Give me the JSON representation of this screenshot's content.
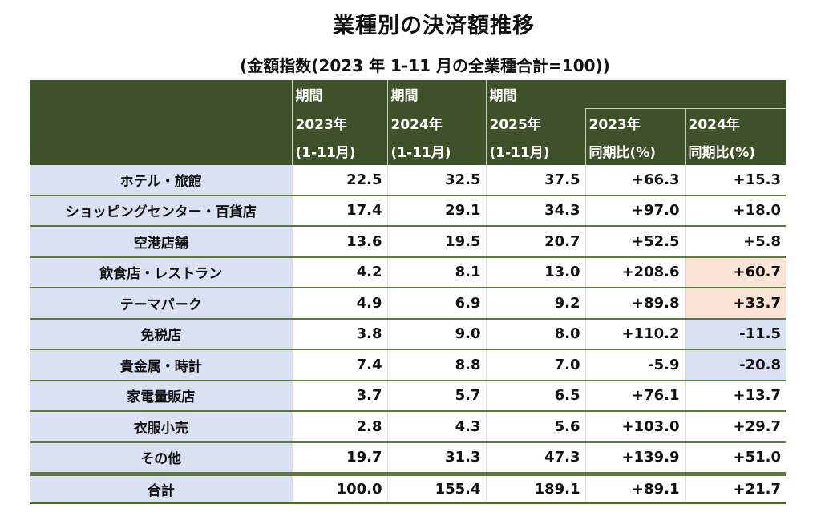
{
  "title": "業種別の決済額推移",
  "subtitle": "(金額指数(2023 年 1-11 月の全業種合計=100))",
  "header": {
    "period": "期間",
    "cols": [
      {
        "year": "2023年",
        "range": "(1-11月)"
      },
      {
        "year": "2024年",
        "range": "(1-11月)"
      },
      {
        "year": "2025年",
        "range": "(1-11月)"
      },
      {
        "year": "2023年",
        "range": "同期比(%)"
      },
      {
        "year": "2024年",
        "range": "同期比(%)"
      }
    ]
  },
  "rows": [
    {
      "label": "ホテル・旅館",
      "v": [
        "22.5",
        "32.5",
        "37.5",
        "+66.3",
        "+15.3"
      ],
      "hl": ""
    },
    {
      "label": "ショッピングセンター・百貨店",
      "v": [
        "17.4",
        "29.1",
        "34.3",
        "+97.0",
        "+18.0"
      ],
      "hl": ""
    },
    {
      "label": "空港店舗",
      "v": [
        "13.6",
        "19.5",
        "20.7",
        "+52.5",
        "+5.8"
      ],
      "hl": ""
    },
    {
      "label": "飲食店・レストラン",
      "v": [
        "4.2",
        "8.1",
        "13.0",
        "+208.6",
        "+60.7"
      ],
      "hl": "pos"
    },
    {
      "label": "テーマパーク",
      "v": [
        "4.9",
        "6.9",
        "9.2",
        "+89.8",
        "+33.7"
      ],
      "hl": "pos"
    },
    {
      "label": "免税店",
      "v": [
        "3.8",
        "9.0",
        "8.0",
        "+110.2",
        "-11.5"
      ],
      "hl": "neg"
    },
    {
      "label": "貴金属・時計",
      "v": [
        "7.4",
        "8.8",
        "7.0",
        "-5.9",
        "-20.8"
      ],
      "hl": "neg"
    },
    {
      "label": "家電量販店",
      "v": [
        "3.7",
        "5.7",
        "6.5",
        "+76.1",
        "+13.7"
      ],
      "hl": ""
    },
    {
      "label": "衣服小売",
      "v": [
        "2.8",
        "4.3",
        "5.6",
        "+103.0",
        "+29.7"
      ],
      "hl": ""
    },
    {
      "label": "その他",
      "v": [
        "19.7",
        "31.3",
        "47.3",
        "+139.9",
        "+51.0"
      ],
      "hl": ""
    }
  ],
  "total": {
    "label": "合計",
    "v": [
      "100.0",
      "155.4",
      "189.1",
      "+89.1",
      "+21.7"
    ]
  },
  "colors": {
    "header": "#3e5229",
    "label_bg": "#d9e1f2",
    "highlight_up": "#fbe4d5",
    "highlight_down": "#d9e1f2",
    "rule": "#5b7a3c"
  }
}
